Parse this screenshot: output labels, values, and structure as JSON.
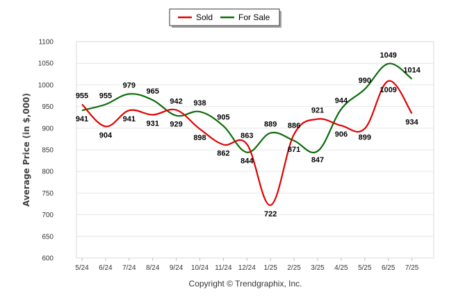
{
  "chart_data": {
    "type": "line",
    "categories": [
      "5/24",
      "6/24",
      "7/24",
      "8/24",
      "9/24",
      "10/24",
      "11/24",
      "12/24",
      "1/25",
      "2/25",
      "3/25",
      "4/25",
      "5/25",
      "6/25",
      "7/25"
    ],
    "series": [
      {
        "name": "Sold",
        "color": "#e00000",
        "values": [
          955,
          904,
          941,
          931,
          942,
          898,
          862,
          863,
          722,
          886,
          921,
          906,
          899,
          1009,
          934
        ]
      },
      {
        "name": "For Sale",
        "color": "#0a6b0a",
        "values": [
          941,
          955,
          979,
          965,
          929,
          938,
          905,
          844,
          889,
          871,
          847,
          944,
          990,
          1049,
          1014
        ]
      }
    ],
    "ylabel": "Average Price (in $,000)",
    "xlabel": "",
    "ylim": [
      600,
      1100
    ],
    "yticks": [
      "1100",
      "1050",
      "1000",
      "950",
      "900",
      "850",
      "800",
      "750",
      "700",
      "650",
      "600"
    ],
    "grid": true,
    "legend_position": "top-center",
    "credit": "Copyright © Trendgraphix, Inc."
  }
}
